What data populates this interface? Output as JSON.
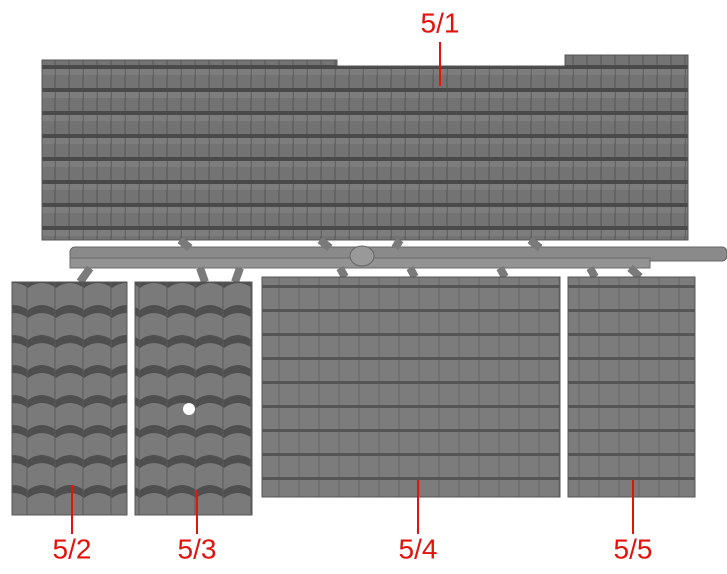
{
  "labels": [
    "5/1",
    "5/2",
    "5/3",
    "5/4",
    "5/5"
  ]
}
